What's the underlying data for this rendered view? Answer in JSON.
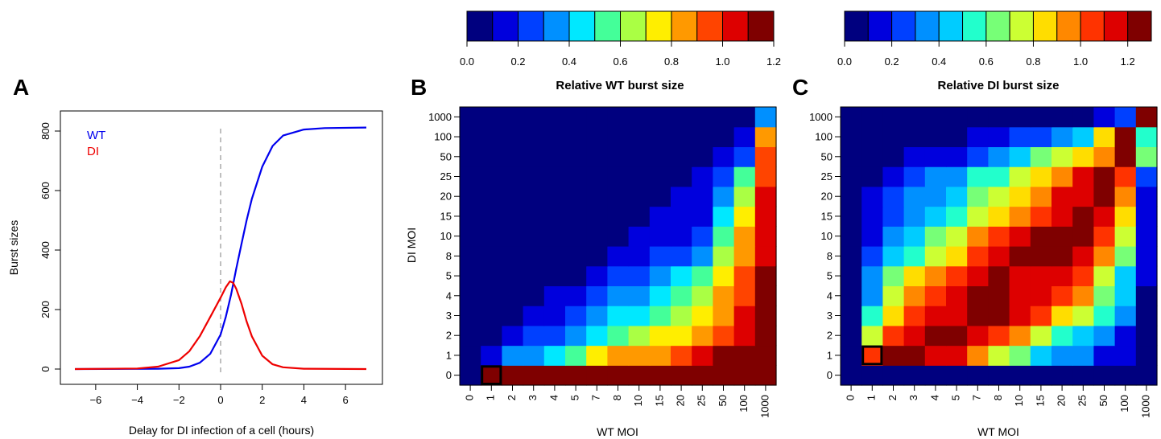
{
  "chart_data": [
    {
      "type": "line",
      "panel": "A",
      "xlabel": "Delay for DI infection of a cell (hours)",
      "ylabel": "Burst sizes",
      "xlim": [
        -7,
        7
      ],
      "ylim": [
        0,
        820
      ],
      "xticks": [
        -6,
        -4,
        -2,
        0,
        2,
        4,
        6
      ],
      "xtick_labels": [
        "−6",
        "−4",
        "−2",
        "0",
        "2",
        "4",
        "6"
      ],
      "yticks": [
        0,
        200,
        400,
        600,
        800
      ],
      "ref_line_x": 0,
      "legend_position": "top-left",
      "series": [
        {
          "name": "WT",
          "color": "#0000ee",
          "x": [
            -7,
            -3,
            -2,
            -1.5,
            -1,
            -0.5,
            0,
            0.25,
            0.5,
            0.75,
            1,
            1.25,
            1.5,
            2,
            2.5,
            3,
            4,
            5,
            7
          ],
          "y": [
            0,
            1,
            3,
            8,
            21,
            51,
            116,
            176,
            249,
            337,
            420,
            500,
            572,
            680,
            750,
            785,
            805,
            810,
            812
          ]
        },
        {
          "name": "DI",
          "color": "#ee0000",
          "x": [
            -7,
            -4,
            -3,
            -2,
            -1.5,
            -1,
            -0.5,
            0,
            0.25,
            0.45,
            0.6,
            0.75,
            1,
            1.25,
            1.5,
            2,
            2.5,
            3,
            4,
            7
          ],
          "y": [
            0,
            2,
            8,
            30,
            60,
            110,
            175,
            240,
            275,
            295,
            290,
            270,
            220,
            160,
            110,
            45,
            16,
            6,
            1,
            0
          ]
        }
      ]
    },
    {
      "type": "heatmap",
      "panel": "B",
      "xlabel": "WT MOI",
      "ylabel": "DI MOI",
      "x_labels": [
        "0",
        "1",
        "2",
        "3",
        "4",
        "5",
        "7",
        "8",
        "10",
        "15",
        "20",
        "25",
        "50",
        "100",
        "1000"
      ],
      "y_labels": [
        "0",
        "1",
        "2",
        "3",
        "4",
        "5",
        "8",
        "10",
        "15",
        "20",
        "25",
        "50",
        "100",
        "1000"
      ],
      "highlight_cell": {
        "x": "1",
        "y": "0"
      },
      "colorbar": {
        "title": "Relative WT burst size",
        "ticks": [
          0.0,
          0.2,
          0.4,
          0.6,
          0.8,
          1.0,
          1.2
        ],
        "tick_labels": [
          "0.0",
          "0.2",
          "0.4",
          "0.6",
          "0.8",
          "1.0",
          "1.2"
        ],
        "range": [
          0,
          1.2
        ],
        "colors": [
          "#00007f",
          "#0000dd",
          "#0040ff",
          "#0090ff",
          "#00e8ff",
          "#44ff99",
          "#aaff44",
          "#ffee00",
          "#ff9900",
          "#ff4400",
          "#dd0000",
          "#7f0000"
        ]
      },
      "values": [
        [
          0.0,
          1.1,
          1.17,
          1.17,
          1.17,
          1.17,
          1.17,
          1.17,
          1.17,
          1.17,
          1.17,
          1.17,
          1.17,
          1.17,
          1.17
        ],
        [
          0.0,
          0.12,
          0.32,
          0.38,
          0.45,
          0.55,
          0.72,
          0.8,
          0.83,
          0.87,
          0.95,
          1.0,
          1.1,
          1.13,
          1.16
        ],
        [
          0.0,
          0.05,
          0.14,
          0.22,
          0.28,
          0.36,
          0.47,
          0.55,
          0.64,
          0.7,
          0.75,
          0.85,
          0.95,
          1.07,
          1.15
        ],
        [
          0.0,
          0.03,
          0.07,
          0.12,
          0.17,
          0.22,
          0.32,
          0.4,
          0.48,
          0.56,
          0.66,
          0.75,
          0.88,
          1.0,
          1.14
        ],
        [
          0.0,
          0.02,
          0.05,
          0.08,
          0.11,
          0.14,
          0.22,
          0.3,
          0.38,
          0.46,
          0.54,
          0.64,
          0.83,
          0.96,
          1.12
        ],
        [
          0.0,
          0.01,
          0.03,
          0.05,
          0.07,
          0.09,
          0.14,
          0.2,
          0.26,
          0.34,
          0.4,
          0.54,
          0.78,
          0.95,
          1.11
        ],
        [
          0.0,
          0.01,
          0.02,
          0.03,
          0.04,
          0.05,
          0.08,
          0.1,
          0.15,
          0.2,
          0.26,
          0.33,
          0.65,
          0.88,
          1.08
        ],
        [
          0.0,
          0.0,
          0.01,
          0.02,
          0.03,
          0.04,
          0.06,
          0.08,
          0.1,
          0.13,
          0.17,
          0.23,
          0.58,
          0.82,
          1.05
        ],
        [
          0.0,
          0.0,
          0.0,
          0.01,
          0.02,
          0.03,
          0.04,
          0.05,
          0.07,
          0.1,
          0.14,
          0.18,
          0.45,
          0.72,
          1.02
        ],
        [
          0.0,
          0.0,
          0.0,
          0.0,
          0.01,
          0.02,
          0.03,
          0.04,
          0.05,
          0.07,
          0.1,
          0.14,
          0.36,
          0.62,
          1.0
        ],
        [
          0.0,
          0.0,
          0.0,
          0.0,
          0.0,
          0.01,
          0.02,
          0.03,
          0.04,
          0.05,
          0.08,
          0.11,
          0.29,
          0.55,
          0.98
        ],
        [
          0.0,
          0.0,
          0.0,
          0.0,
          0.0,
          0.0,
          0.01,
          0.01,
          0.02,
          0.03,
          0.04,
          0.05,
          0.14,
          0.23,
          0.92
        ],
        [
          0.0,
          0.0,
          0.0,
          0.0,
          0.0,
          0.0,
          0.0,
          0.0,
          0.01,
          0.01,
          0.02,
          0.03,
          0.07,
          0.15,
          0.82
        ],
        [
          0.0,
          0.0,
          0.0,
          0.0,
          0.0,
          0.0,
          0.0,
          0.0,
          0.0,
          0.0,
          0.0,
          0.0,
          0.0,
          0.0,
          0.32
        ]
      ]
    },
    {
      "type": "heatmap",
      "panel": "C",
      "xlabel": "WT MOI",
      "ylabel": "",
      "x_labels": [
        "0",
        "1",
        "2",
        "3",
        "4",
        "5",
        "7",
        "8",
        "10",
        "15",
        "20",
        "25",
        "50",
        "100",
        "1000"
      ],
      "y_labels": [
        "0",
        "1",
        "2",
        "3",
        "4",
        "5",
        "8",
        "10",
        "15",
        "20",
        "25",
        "50",
        "100",
        "1000"
      ],
      "highlight_cell": {
        "x": "1",
        "y": "1"
      },
      "colorbar": {
        "title": "Relative DI burst size",
        "ticks": [
          0.0,
          0.2,
          0.4,
          0.6,
          0.8,
          1.0,
          1.2
        ],
        "tick_labels": [
          "0.0",
          "0.2",
          "0.4",
          "0.6",
          "0.8",
          "1.0",
          "1.2"
        ],
        "range": [
          0,
          1.3
        ],
        "colors": [
          "#00007f",
          "#0000dd",
          "#0040ff",
          "#0090ff",
          "#00ccff",
          "#22ffcc",
          "#77ff77",
          "#ccff33",
          "#ffdd00",
          "#ff8800",
          "#ff3300",
          "#dd0000",
          "#7f0000"
        ]
      },
      "values": [
        [
          0.0,
          0.0,
          0.0,
          0.0,
          0.0,
          0.0,
          0.0,
          0.0,
          0.0,
          0.0,
          0.0,
          0.0,
          0.0,
          0.0,
          0.0
        ],
        [
          0.0,
          1.05,
          1.25,
          1.25,
          1.18,
          1.1,
          0.9,
          0.75,
          0.6,
          0.45,
          0.38,
          0.3,
          0.18,
          0.1,
          0.02
        ],
        [
          0.0,
          0.7,
          1.08,
          1.18,
          1.23,
          1.23,
          1.15,
          1.08,
          0.9,
          0.72,
          0.58,
          0.48,
          0.3,
          0.18,
          0.04
        ],
        [
          0.0,
          0.5,
          0.88,
          1.05,
          1.12,
          1.18,
          1.23,
          1.2,
          1.15,
          1.05,
          0.85,
          0.7,
          0.5,
          0.33,
          0.06
        ],
        [
          0.0,
          0.38,
          0.74,
          0.92,
          1.05,
          1.12,
          1.22,
          1.25,
          1.18,
          1.15,
          1.05,
          0.9,
          0.6,
          0.4,
          0.08
        ],
        [
          0.0,
          0.3,
          0.6,
          0.8,
          0.95,
          1.05,
          1.18,
          1.25,
          1.15,
          1.18,
          1.1,
          1.05,
          0.7,
          0.48,
          0.1
        ],
        [
          0.0,
          0.2,
          0.4,
          0.58,
          0.72,
          0.86,
          1.05,
          1.15,
          1.22,
          1.25,
          1.22,
          1.18,
          0.92,
          0.6,
          0.12
        ],
        [
          0.0,
          0.16,
          0.32,
          0.46,
          0.6,
          0.72,
          0.92,
          1.05,
          1.12,
          1.2,
          1.25,
          1.25,
          1.05,
          0.7,
          0.14
        ],
        [
          0.0,
          0.13,
          0.26,
          0.37,
          0.48,
          0.58,
          0.78,
          0.88,
          0.98,
          1.08,
          1.18,
          1.25,
          1.15,
          0.8,
          0.16
        ],
        [
          0.0,
          0.11,
          0.21,
          0.3,
          0.38,
          0.46,
          0.62,
          0.74,
          0.85,
          0.95,
          1.1,
          1.17,
          1.25,
          0.9,
          0.18
        ],
        [
          0.0,
          0.09,
          0.17,
          0.24,
          0.3,
          0.37,
          0.5,
          0.58,
          0.7,
          0.82,
          0.96,
          1.1,
          1.25,
          1.08,
          0.2
        ],
        [
          0.0,
          0.04,
          0.08,
          0.11,
          0.14,
          0.18,
          0.24,
          0.32,
          0.43,
          0.6,
          0.75,
          0.82,
          0.98,
          1.2,
          0.6
        ],
        [
          0.0,
          0.02,
          0.04,
          0.05,
          0.07,
          0.09,
          0.12,
          0.15,
          0.2,
          0.28,
          0.36,
          0.45,
          0.82,
          1.22,
          0.52
        ],
        [
          0.0,
          0.0,
          0.0,
          0.0,
          0.0,
          0.0,
          0.0,
          0.0,
          0.0,
          0.01,
          0.02,
          0.05,
          0.1,
          0.25,
          1.25
        ]
      ]
    }
  ],
  "panels": {
    "a_letter": "A",
    "b_letter": "B",
    "c_letter": "C"
  }
}
